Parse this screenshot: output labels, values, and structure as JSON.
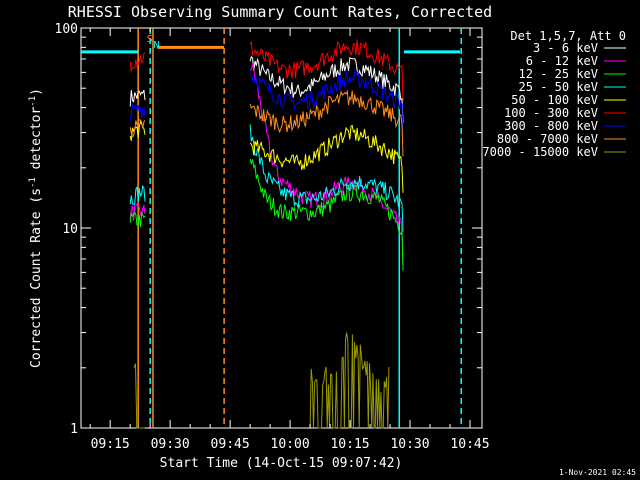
{
  "chart_data": {
    "type": "line",
    "title": "RHESSI Observing Summary Count Rates, Corrected",
    "xlabel": "Start Time (14-Oct-15 09:07:42)",
    "ylabel_main": "Corrected Count Rate (s",
    "ylabel_sup1": "-1",
    "ylabel_mid": " detector",
    "ylabel_sup2": "-1",
    "ylabel_end": ")",
    "yscale": "log",
    "ylim": [
      1,
      100
    ],
    "ytick_values": [
      1,
      10,
      100
    ],
    "ytick_labels": [
      "1",
      "10",
      "100"
    ],
    "xlim_minutes": [
      547.7,
      648
    ],
    "xtick_values": [
      555,
      570,
      585,
      600,
      615,
      630,
      645
    ],
    "xtick_labels": [
      "09:15",
      "09:30",
      "09:45",
      "10:00",
      "10:15",
      "10:30",
      "10:45"
    ],
    "legend_header": "Det 1,5,7, Att 0",
    "legend_position": "top-right",
    "footer": "1-Nov-2021 02:45",
    "flag_labels": [
      {
        "text": "S",
        "x": 564.9,
        "color": "#ff8c1a"
      },
      {
        "text": "N",
        "x": 566.6,
        "color": "#00ffff"
      }
    ],
    "series": [
      {
        "name": "3 - 6 keV",
        "color": "#ffffff",
        "x": [
          560,
          562,
          564,
          566,
          590,
          594,
          598,
          602,
          606,
          610,
          614,
          618,
          622,
          625,
          628,
          628.5
        ],
        "y": [
          45,
          46,
          46,
          null,
          70,
          58,
          52,
          48,
          52,
          60,
          66,
          64,
          57,
          52,
          48,
          20
        ]
      },
      {
        "name": "6 - 12 keV",
        "color": "#ff00ff",
        "x": [
          560,
          562,
          564,
          566,
          590,
          591,
          593,
          595,
          597,
          600,
          604,
          608,
          612,
          616,
          620,
          625,
          628,
          628.5
        ],
        "y": [
          12,
          12,
          12,
          null,
          65,
          60,
          38,
          24,
          18,
          16,
          14,
          14,
          16,
          17,
          15,
          12,
          10,
          5
        ]
      },
      {
        "name": "12 - 25 keV",
        "color": "#00ff00",
        "x": [
          560,
          562,
          564,
          566,
          590,
          594,
          598,
          602,
          606,
          610,
          614,
          618,
          622,
          625,
          628,
          628.5
        ],
        "y": [
          11,
          11,
          11,
          null,
          22,
          14,
          12,
          12,
          12,
          13,
          15,
          15,
          14,
          12,
          10,
          4
        ]
      },
      {
        "name": "25 - 50 keV",
        "color": "#00ffff",
        "x": [
          560,
          562,
          564,
          566,
          590,
          594,
          598,
          602,
          606,
          610,
          614,
          618,
          622,
          625,
          628,
          628.5
        ],
        "y": [
          14,
          15,
          15,
          null,
          30,
          18,
          15,
          14,
          14,
          15,
          17,
          17,
          16,
          15,
          13,
          6
        ]
      },
      {
        "name": "50 - 100 keV",
        "color": "#ffff00",
        "x": [
          560,
          562,
          564,
          566,
          590,
          594,
          598,
          602,
          606,
          610,
          614,
          618,
          622,
          625,
          628,
          628.5
        ],
        "y": [
          30,
          31,
          31,
          null,
          26,
          24,
          22,
          21,
          23,
          26,
          30,
          29,
          26,
          24,
          21,
          10
        ]
      },
      {
        "name": "100 - 300 keV",
        "color": "#ff0000",
        "x": [
          560,
          562,
          564,
          566,
          590,
          594,
          598,
          602,
          606,
          610,
          614,
          618,
          622,
          625,
          628,
          628.5
        ],
        "y": [
          68,
          70,
          72,
          null,
          80,
          70,
          62,
          62,
          66,
          74,
          82,
          80,
          72,
          66,
          60,
          30
        ]
      },
      {
        "name": "300 - 800 keV",
        "color": "#0000ff",
        "x": [
          560,
          562,
          564,
          566,
          590,
          594,
          598,
          602,
          606,
          610,
          614,
          618,
          622,
          625,
          628,
          628.5
        ],
        "y": [
          38,
          39,
          40,
          null,
          60,
          50,
          44,
          42,
          45,
          50,
          56,
          55,
          50,
          45,
          42,
          18
        ]
      },
      {
        "name": "800 - 7000 keV",
        "color": "#ff8c1a",
        "x": [
          560,
          562,
          564,
          566,
          590,
          594,
          598,
          602,
          606,
          610,
          614,
          618,
          622,
          625,
          628,
          628.5
        ],
        "y": [
          31,
          32,
          33,
          null,
          40,
          36,
          33,
          34,
          37,
          42,
          45,
          44,
          40,
          37,
          34,
          15
        ]
      },
      {
        "name": "7000 - 15000 keV",
        "color": "#999900",
        "x": [
          561,
          562,
          563,
          564,
          565,
          594.5,
          596,
          605,
          607,
          609,
          611,
          613,
          615,
          617,
          619,
          621,
          623,
          625
        ],
        "y": [
          2,
          2,
          1.5,
          2,
          null,
          1.6,
          null,
          2,
          1.7,
          2,
          1.8,
          2.4,
          3,
          2.4,
          2,
          1.8,
          1.6,
          2
        ]
      }
    ],
    "level_lines": [
      {
        "color": "#00ffff",
        "x": [
          547.7,
          562
        ],
        "y": [
          76,
          76
        ]
      },
      {
        "color": "#00ffff",
        "x": [
          628.5,
          642.5
        ],
        "y": [
          76,
          76
        ]
      },
      {
        "color": "#ff8c1a",
        "x": [
          566.8,
          583.5
        ],
        "y": [
          80,
          80
        ]
      }
    ],
    "vlines": [
      {
        "x": 562.0,
        "color": "#ff8c1a",
        "style": "solid"
      },
      {
        "x": 565.7,
        "color": "#ff8c1a",
        "style": "solid"
      },
      {
        "x": 583.5,
        "color": "#ff8c1a",
        "style": "dashed"
      },
      {
        "x": 565.0,
        "color": "#00ffff",
        "style": "dashed"
      },
      {
        "x": 627.3,
        "color": "#00ffff",
        "style": "solid"
      },
      {
        "x": 642.8,
        "color": "#00ffff",
        "style": "dashed"
      }
    ]
  }
}
